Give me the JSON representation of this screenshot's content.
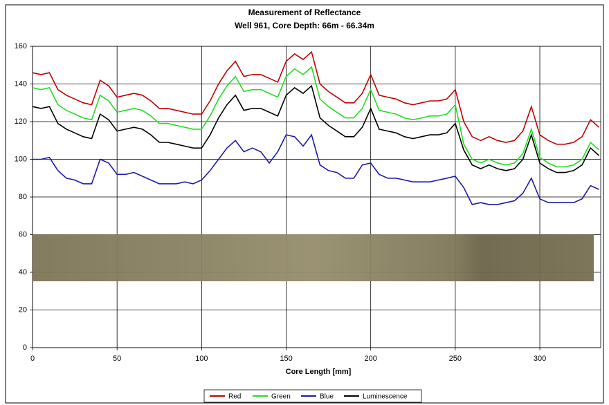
{
  "chart_data": {
    "type": "line",
    "title": "Measurement of Reflectance",
    "subtitle": "Well 961, Core Depth: 66m - 66.34m",
    "x_label": "Core Length [mm]",
    "x": [
      0,
      5,
      10,
      15,
      20,
      25,
      30,
      35,
      40,
      45,
      50,
      55,
      60,
      65,
      70,
      75,
      80,
      85,
      90,
      95,
      100,
      105,
      110,
      115,
      120,
      125,
      130,
      135,
      140,
      145,
      150,
      155,
      160,
      165,
      170,
      175,
      180,
      185,
      190,
      195,
      200,
      205,
      210,
      215,
      220,
      225,
      230,
      235,
      240,
      245,
      250,
      255,
      260,
      265,
      270,
      275,
      280,
      285,
      290,
      295,
      300,
      305,
      310,
      315,
      320,
      325,
      330,
      335
    ],
    "series": [
      {
        "name": "Red",
        "color": "#c00000",
        "values": [
          146,
          145,
          146,
          137,
          134,
          132,
          130,
          129,
          142,
          139,
          133,
          134,
          135,
          134,
          131,
          127,
          127,
          126,
          125,
          124,
          124,
          131,
          140,
          147,
          152,
          144,
          145,
          145,
          143,
          141,
          152,
          156,
          153,
          157,
          140,
          136,
          133,
          130,
          130,
          135,
          145,
          134,
          133,
          132,
          130,
          129,
          130,
          131,
          131,
          132,
          137,
          120,
          112,
          110,
          112,
          110,
          109,
          110,
          115,
          128,
          113,
          110,
          108,
          108,
          109,
          112,
          121,
          117
        ]
      },
      {
        "name": "Green",
        "color": "#22dd22",
        "values": [
          138,
          137,
          138,
          129,
          126,
          124,
          122,
          121,
          134,
          131,
          125,
          126,
          127,
          126,
          123,
          119,
          119,
          118,
          117,
          116,
          116,
          123,
          132,
          139,
          144,
          136,
          137,
          137,
          135,
          133,
          144,
          148,
          145,
          149,
          132,
          128,
          125,
          122,
          122,
          127,
          137,
          126,
          125,
          124,
          122,
          121,
          122,
          123,
          123,
          124,
          129,
          108,
          100,
          98,
          100,
          98,
          97,
          98,
          103,
          116,
          101,
          98,
          96,
          96,
          97,
          100,
          109,
          105
        ]
      },
      {
        "name": "Blue",
        "color": "#1a1aaa",
        "values": [
          100,
          100,
          101,
          94,
          90,
          89,
          87,
          87,
          100,
          98,
          92,
          92,
          93,
          91,
          89,
          87,
          87,
          87,
          88,
          87,
          89,
          94,
          100,
          106,
          110,
          104,
          106,
          104,
          98,
          104,
          113,
          112,
          107,
          113,
          97,
          94,
          93,
          90,
          90,
          97,
          98,
          92,
          90,
          90,
          89,
          88,
          88,
          88,
          89,
          90,
          91,
          85,
          76,
          77,
          76,
          76,
          77,
          78,
          82,
          90,
          79,
          77,
          77,
          77,
          77,
          79,
          86,
          84
        ]
      },
      {
        "name": "Luminescence",
        "color": "#000000",
        "values": [
          128,
          127,
          128,
          119,
          116,
          114,
          112,
          111,
          124,
          121,
          115,
          116,
          117,
          116,
          113,
          109,
          109,
          108,
          107,
          106,
          106,
          113,
          122,
          129,
          134,
          126,
          127,
          127,
          125,
          123,
          134,
          138,
          135,
          139,
          122,
          118,
          115,
          112,
          112,
          117,
          127,
          116,
          115,
          114,
          112,
          111,
          112,
          113,
          113,
          114,
          119,
          105,
          97,
          95,
          97,
          95,
          94,
          95,
          100,
          113,
          98,
          95,
          93,
          93,
          94,
          97,
          106,
          102
        ]
      }
    ],
    "xlim": [
      0,
      336
    ],
    "xticks": [
      0,
      50,
      100,
      150,
      200,
      250,
      300
    ],
    "ylim": [
      0,
      160
    ],
    "yticks": [
      0,
      20,
      40,
      60,
      80,
      100,
      120,
      140,
      160
    ],
    "grid": true,
    "legend": "bottom"
  }
}
